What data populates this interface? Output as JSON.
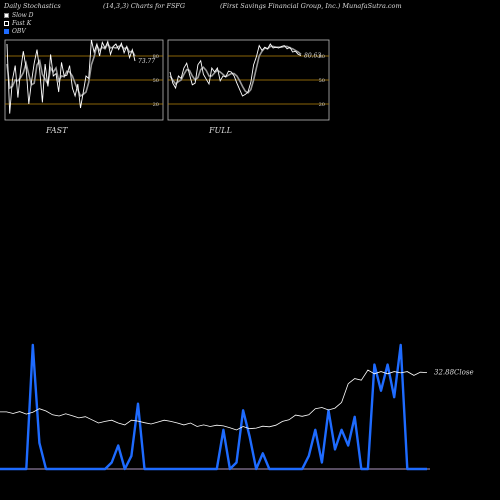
{
  "header": {
    "left": "Daily Stochastics",
    "middle": "(14,3,3) Charts for FSFG",
    "right": "(First Savings Financial Group, Inc.) MunafaSutra.com"
  },
  "legend": [
    {
      "label": "Slow  D",
      "swatch": "slow"
    },
    {
      "label": "Fast K",
      "swatch": "fast"
    },
    {
      "label": "OBV",
      "swatch": "obv"
    }
  ],
  "colors": {
    "background": "#000000",
    "price": "#ffffff",
    "obv": "#1e6bff",
    "level_line": "#b8860b",
    "baseline": "#8b7a9b"
  },
  "chart_data": [
    {
      "type": "line",
      "panel": "FAST",
      "ylim": [
        0,
        100
      ],
      "yticks": [
        20,
        50,
        80
      ],
      "last_value_label": "73.77",
      "series": [
        {
          "name": "Fast K",
          "values": [
            95,
            8,
            50,
            68,
            28,
            62,
            86,
            65,
            20,
            48,
            71,
            88,
            62,
            22,
            70,
            42,
            82,
            55,
            58,
            35,
            72,
            55,
            56,
            68,
            40,
            30,
            45,
            15,
            35,
            55,
            52,
            100,
            85,
            95,
            80,
            97,
            90,
            98,
            82,
            92,
            95,
            88,
            96,
            84,
            92,
            78,
            88,
            73.77
          ]
        },
        {
          "name": "Slow  D",
          "values": [
            70,
            40,
            42,
            50,
            49,
            53,
            59,
            71,
            57,
            44,
            46,
            69,
            74,
            57,
            51,
            45,
            65,
            60,
            65,
            49,
            55,
            54,
            61,
            60,
            55,
            46,
            38,
            30,
            32,
            35,
            47,
            69,
            79,
            93,
            87,
            91,
            89,
            95,
            90,
            91,
            90,
            92,
            93,
            89,
            91,
            85,
            86,
            80
          ]
        }
      ]
    },
    {
      "type": "line",
      "panel": "FULL",
      "ylim": [
        0,
        100
      ],
      "yticks": [
        20,
        50,
        80
      ],
      "last_value_label": "80.63",
      "series": [
        {
          "name": "Fast K",
          "values": [
            60,
            46,
            40,
            55,
            52,
            65,
            71,
            57,
            44,
            46,
            69,
            74,
            57,
            51,
            45,
            65,
            60,
            65,
            49,
            55,
            54,
            61,
            60,
            55,
            46,
            38,
            30,
            32,
            35,
            47,
            69,
            79,
            93,
            87,
            91,
            89,
            95,
            90,
            91,
            90,
            92,
            93,
            89,
            91,
            85,
            86,
            82,
            80.63
          ]
        },
        {
          "name": "Slow  D",
          "values": [
            55,
            50,
            45,
            48,
            50,
            57,
            63,
            62,
            55,
            50,
            53,
            63,
            66,
            62,
            55,
            55,
            59,
            62,
            60,
            57,
            54,
            56,
            58,
            58,
            55,
            49,
            42,
            36,
            34,
            38,
            50,
            65,
            80,
            86,
            90,
            89,
            92,
            92,
            91,
            91,
            91,
            92,
            92,
            90,
            89,
            87,
            85,
            82
          ]
        }
      ]
    },
    {
      "type": "line",
      "panel": "price",
      "last_value_label": "32.88",
      "last_value_suffix": "Close",
      "series": [
        {
          "name": "Close",
          "values": [
            20.5,
            20.5,
            20.0,
            20.6,
            19.8,
            20.4,
            21.5,
            20.8,
            19.6,
            19.2,
            19.9,
            19.3,
            18.6,
            19.0,
            18.0,
            17.0,
            17.5,
            17.9,
            17.0,
            16.4,
            17.9,
            17.6,
            17.1,
            16.7,
            17.3,
            17.9,
            17.5,
            17.0,
            16.4,
            17.0,
            15.9,
            16.4,
            15.9,
            16.3,
            16.1,
            15.5,
            14.8,
            15.9,
            15.2,
            15.4,
            16.0,
            15.8,
            16.3,
            17.5,
            18.0,
            19.5,
            19.1,
            19.6,
            21.5,
            21.9,
            21.1,
            21.7,
            23.5,
            29.4,
            31.0,
            30.5,
            33.7,
            32.5,
            33.2,
            32.5,
            33.2,
            32.8,
            33.2,
            32.0,
            33.0,
            32.88
          ]
        },
        {
          "name": "OBV",
          "values": [
            0,
            0,
            0,
            0,
            0,
            95,
            20,
            0,
            0,
            0,
            0,
            0,
            0,
            0,
            0,
            0,
            0,
            5,
            18,
            0,
            10,
            50,
            0,
            0,
            0,
            0,
            0,
            0,
            0,
            0,
            0,
            0,
            0,
            0,
            30,
            0,
            5,
            45,
            25,
            0,
            12,
            0,
            0,
            0,
            0,
            0,
            0,
            10,
            30,
            5,
            45,
            15,
            30,
            18,
            40,
            0,
            0,
            80,
            60,
            80,
            55,
            95,
            0,
            0,
            0,
            0
          ]
        }
      ]
    }
  ]
}
